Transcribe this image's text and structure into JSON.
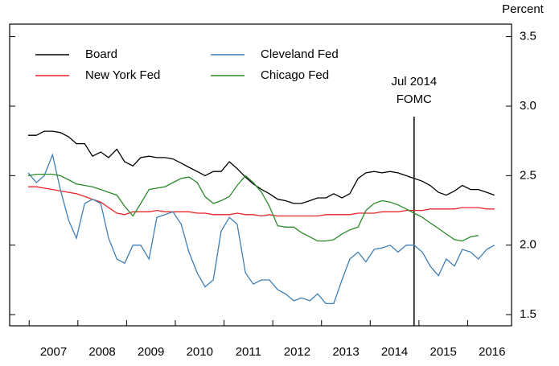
{
  "chart_data": {
    "type": "line",
    "y_label": "Percent",
    "xlim": [
      2006.6,
      2016.9
    ],
    "xticks": [
      2007,
      2008,
      2009,
      2010,
      2011,
      2012,
      2013,
      2014,
      2015,
      2016
    ],
    "ylim": [
      1.42,
      3.59
    ],
    "yticks": [
      1.5,
      2.0,
      2.5,
      3.0,
      3.5
    ],
    "yticks_label": [
      "1.5",
      "2.0",
      "2.5",
      "3.0",
      "3.5"
    ],
    "annotation": {
      "text": [
        "Jul 2014",
        "FOMC"
      ],
      "x": 2014.9
    },
    "x": [
      2006.98,
      2007.15,
      2007.31,
      2007.48,
      2007.64,
      2007.81,
      2007.97,
      2008.14,
      2008.3,
      2008.47,
      2008.63,
      2008.8,
      2008.96,
      2009.13,
      2009.29,
      2009.46,
      2009.62,
      2009.79,
      2009.95,
      2010.12,
      2010.28,
      2010.45,
      2010.61,
      2010.78,
      2010.94,
      2011.11,
      2011.27,
      2011.44,
      2011.6,
      2011.77,
      2011.93,
      2012.1,
      2012.26,
      2012.43,
      2012.59,
      2012.76,
      2012.92,
      2013.09,
      2013.25,
      2013.42,
      2013.58,
      2013.75,
      2013.91,
      2014.08,
      2014.24,
      2014.41,
      2014.57,
      2014.74,
      2014.9,
      2015.07,
      2015.23,
      2015.4,
      2015.56,
      2015.73,
      2015.89,
      2016.06,
      2016.22,
      2016.39,
      2016.55
    ],
    "series": [
      {
        "name": "Board",
        "color": "#000000",
        "values": [
          2.79,
          2.79,
          2.82,
          2.82,
          2.81,
          2.78,
          2.73,
          2.73,
          2.64,
          2.67,
          2.63,
          2.69,
          2.6,
          2.57,
          2.63,
          2.64,
          2.63,
          2.63,
          2.62,
          2.59,
          2.56,
          2.53,
          2.5,
          2.53,
          2.53,
          2.6,
          2.55,
          2.49,
          2.44,
          2.4,
          2.37,
          2.33,
          2.32,
          2.3,
          2.3,
          2.32,
          2.34,
          2.34,
          2.37,
          2.34,
          2.37,
          2.48,
          2.52,
          2.53,
          2.52,
          2.53,
          2.52,
          2.5,
          2.48,
          2.46,
          2.43,
          2.38,
          2.36,
          2.39,
          2.43,
          2.4,
          2.4,
          2.38,
          2.36
        ]
      },
      {
        "name": "New York Fed",
        "color": "#e8262b",
        "values": [
          2.42,
          2.42,
          2.41,
          2.4,
          2.39,
          2.38,
          2.37,
          2.35,
          2.33,
          2.31,
          2.27,
          2.23,
          2.22,
          2.24,
          2.24,
          2.24,
          2.25,
          2.24,
          2.24,
          2.24,
          2.24,
          2.23,
          2.23,
          2.22,
          2.22,
          2.22,
          2.23,
          2.22,
          2.22,
          2.21,
          2.22,
          2.21,
          2.21,
          2.21,
          2.21,
          2.21,
          2.21,
          2.22,
          2.22,
          2.22,
          2.22,
          2.23,
          2.23,
          2.23,
          2.24,
          2.24,
          2.24,
          2.25,
          2.25,
          2.25,
          2.26,
          2.26,
          2.26,
          2.26,
          2.27,
          2.27,
          2.27,
          2.26,
          2.26
        ]
      },
      {
        "name": "Cleveland Fed",
        "color": "#3f7fb5",
        "values": [
          2.52,
          2.45,
          2.5,
          2.65,
          2.4,
          2.18,
          2.05,
          2.3,
          2.33,
          2.3,
          2.05,
          1.9,
          1.87,
          2.0,
          2.0,
          1.9,
          2.2,
          2.22,
          2.24,
          2.15,
          1.95,
          1.8,
          1.7,
          1.75,
          2.1,
          2.2,
          2.15,
          1.8,
          1.72,
          1.75,
          1.75,
          1.68,
          1.65,
          1.6,
          1.62,
          1.6,
          1.65,
          1.58,
          1.58,
          1.75,
          1.9,
          1.95,
          1.88,
          1.97,
          1.98,
          2.0,
          1.95,
          2.0,
          2.0,
          1.95,
          1.85,
          1.78,
          1.9,
          1.85,
          1.97,
          1.95,
          1.9,
          1.97,
          2.0
        ]
      },
      {
        "name": "Chicago Fed",
        "color": "#2b8a2b",
        "values": [
          2.5,
          2.51,
          2.51,
          2.51,
          2.5,
          2.47,
          2.44,
          2.43,
          2.42,
          2.4,
          2.38,
          2.36,
          2.28,
          2.21,
          2.3,
          2.4,
          2.41,
          2.42,
          2.45,
          2.48,
          2.49,
          2.45,
          2.35,
          2.3,
          2.32,
          2.35,
          2.43,
          2.5,
          2.45,
          2.38,
          2.28,
          2.14,
          2.13,
          2.13,
          2.09,
          2.06,
          2.03,
          2.03,
          2.04,
          2.08,
          2.11,
          2.13,
          2.25,
          2.3,
          2.32,
          2.31,
          2.29,
          2.26,
          2.23,
          2.2,
          2.16,
          2.12,
          2.08,
          2.04,
          2.03,
          2.06,
          2.07,
          null,
          null
        ]
      }
    ]
  }
}
